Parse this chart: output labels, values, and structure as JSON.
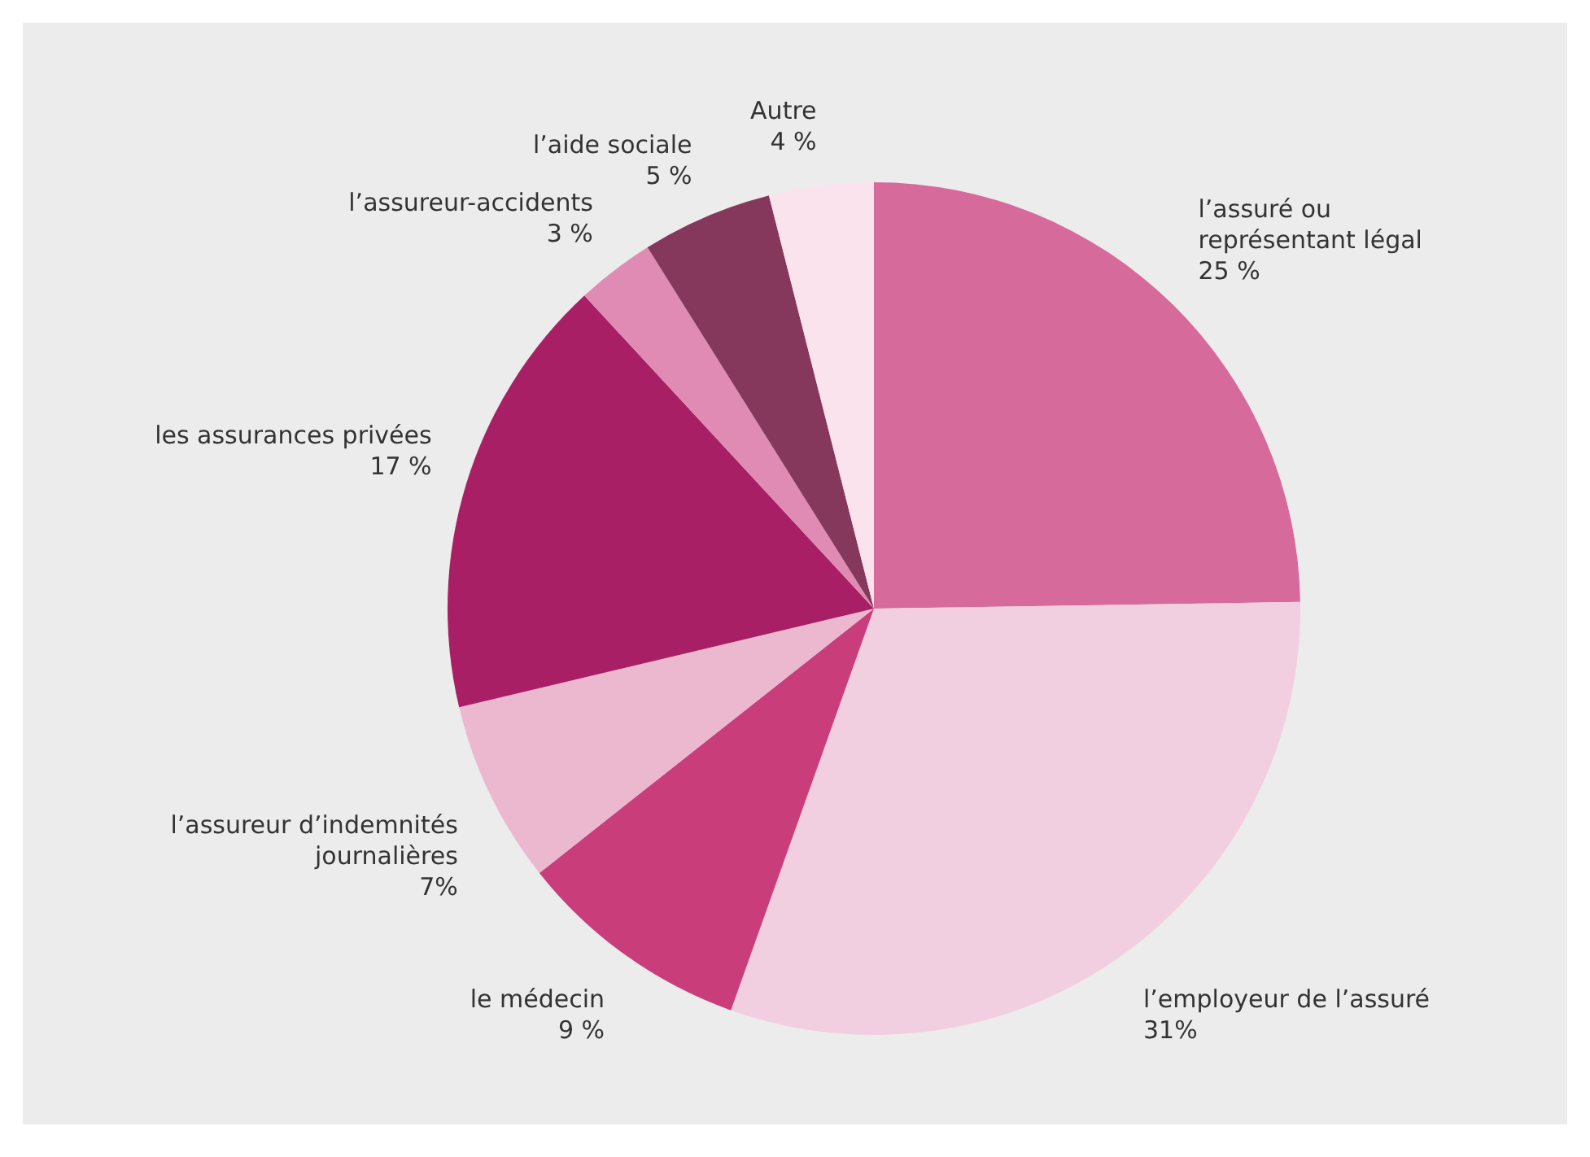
{
  "chart_data": {
    "type": "pie",
    "categories": [
      "l’assuré ou\nreprésentant légal",
      "l’employeur de l’assuré",
      "le médecin",
      "l’assureur d’indemnités\njournalières",
      "les assurances privées",
      "l’assureur-accidents",
      "l’aide sociale",
      "Autre"
    ],
    "values": [
      25,
      31,
      9,
      7,
      17,
      3,
      5,
      4
    ],
    "value_labels": [
      "25 %",
      "31%",
      "9 %",
      "7%",
      "17 %",
      "3 %",
      "5 %",
      "4 %"
    ],
    "colors": [
      "#d66b9b",
      "#f2cfe0",
      "#c93d7b",
      "#ecb8d0",
      "#a91f66",
      "#e08bb3",
      "#86385c",
      "#fbe3ee"
    ]
  }
}
